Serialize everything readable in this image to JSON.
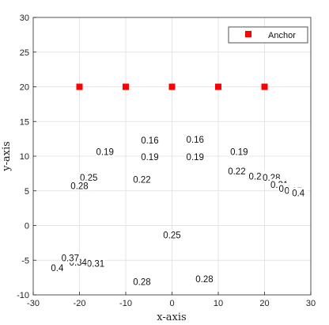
{
  "chart_data": {
    "type": "contour",
    "xlabel": "x-axis",
    "ylabel": "y-axis",
    "xlim": [
      -30,
      30
    ],
    "ylim": [
      -10,
      30
    ],
    "xticks": [
      -30,
      -20,
      -10,
      0,
      10,
      20,
      30
    ],
    "yticks": [
      -10,
      -5,
      0,
      5,
      10,
      15,
      20,
      25,
      30
    ],
    "grid": true,
    "legend": {
      "position": "top-right",
      "entries": [
        "Anchor"
      ]
    },
    "anchors": {
      "name": "Anchor",
      "color": "#ff0000",
      "x": [
        -20,
        -10,
        0,
        10,
        20
      ],
      "y": [
        20,
        20,
        20,
        20,
        20
      ]
    },
    "contour_labels": [
      {
        "text": "0.16",
        "x": -4.8,
        "y": 12.2
      },
      {
        "text": "0.16",
        "x": 5.0,
        "y": 12.3
      },
      {
        "text": "0.19",
        "x": -14.5,
        "y": 10.5
      },
      {
        "text": "0.19",
        "x": -4.8,
        "y": 9.8
      },
      {
        "text": "0.19",
        "x": 5.0,
        "y": 9.8
      },
      {
        "text": "0.19",
        "x": 14.5,
        "y": 10.5
      },
      {
        "text": "0.22",
        "x": -6.5,
        "y": 6.5
      },
      {
        "text": "0.22",
        "x": 14.0,
        "y": 7.7
      },
      {
        "text": "0.25",
        "x": -18.0,
        "y": 6.8
      },
      {
        "text": "0.25",
        "x": 0.0,
        "y": -1.5
      },
      {
        "text": "0.25",
        "x": 18.5,
        "y": 7.0
      },
      {
        "text": "0.28",
        "x": -20.0,
        "y": 5.6
      },
      {
        "text": "0.28",
        "x": 21.5,
        "y": 6.8
      },
      {
        "text": "0.28",
        "x": -6.5,
        "y": -8.2
      },
      {
        "text": "0.28",
        "x": 7.0,
        "y": -7.8
      },
      {
        "text": "0.31",
        "x": 23.2,
        "y": 5.8
      },
      {
        "text": "0.34",
        "x": 25.0,
        "y": 5.2
      },
      {
        "text": "0.37",
        "x": 26.2,
        "y": 4.9
      },
      {
        "text": "0.4",
        "x": 27.3,
        "y": 4.6
      },
      {
        "text": "0.31",
        "x": -16.5,
        "y": -5.6
      },
      {
        "text": "0.34",
        "x": -20.3,
        "y": -5.4
      },
      {
        "text": "0.37",
        "x": -22.0,
        "y": -4.8
      },
      {
        "text": "0.4",
        "x": -24.8,
        "y": -6.2
      }
    ],
    "level_colors": {
      "0.13": "#2e2a8a",
      "0.16": "#2d4cc8",
      "0.19": "#1b6fd8",
      "0.22": "#1b94cf",
      "0.25": "#16a6b0",
      "0.28": "#2eb690",
      "0.31": "#6cbf5e",
      "0.34": "#a7bf3a",
      "0.37": "#dab833",
      "0.4": "#f7d53d",
      "0.43": "#f9f91a"
    }
  }
}
